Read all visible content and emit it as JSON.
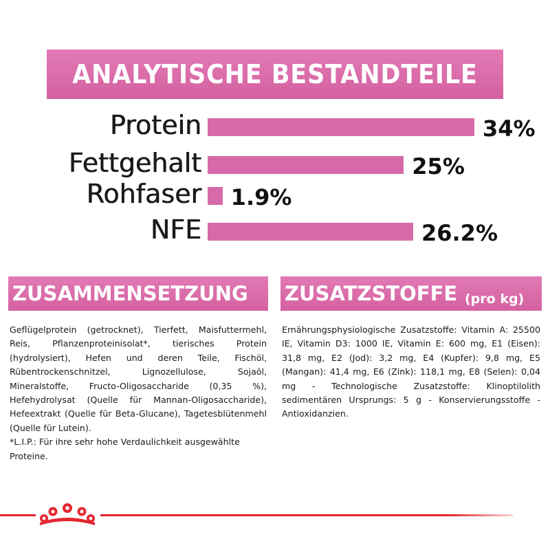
{
  "header": {
    "title": "ANALYTISCHE BESTANDTEILE"
  },
  "nutrients": [
    {
      "label": "Protein",
      "value": "34%",
      "percent": 34
    },
    {
      "label": "Fettgehalt",
      "value": "25%",
      "percent": 25
    },
    {
      "label": "Rohfaser",
      "value": "1.9%",
      "percent": 1.9
    },
    {
      "label": "NFE",
      "value": "26.2%",
      "percent": 26.2
    }
  ],
  "composition": {
    "title": "ZUSAMMENSETZUNG",
    "paragraphs": [
      "Geflügelprotein (getrocknet), Tierfett, Maisfuttermehl, Reis, Pflanzenproteinisolat*, tierisches Protein (hydrolysiert), Hefen und deren Teile, Fischöl, Rübentrockenschnitzel, Lignozellulose, Sojaöl, Mineralstoffe, Fructo-Oligosaccharide (0,35 %), Hefehydrolysat (Quelle für Mannan-Oligosaccharide), Hefeextrakt (Quelle für Beta-Glucane), Tagetesblütenmehl (Quelle für Lutein).",
      "*L.I.P.: Für ihre sehr hohe Verdaulichkeit ausgewählte Proteine."
    ]
  },
  "additives": {
    "title": "ZUSATZSTOFFE",
    "subtitle": "(pro kg)",
    "text": "Ernährungsphysiologische Zusatzstoffe: Vitamin A: 25500 IE, Vitamin D3: 1000 IE, Vitamin E: 600 mg, E1 (Eisen): 31,8 mg, E2 (Jod): 3,2 mg, E4 (Kupfer): 9,8 mg, E5 (Mangan): 41,4 mg, E6 (Zink): 118,1 mg, E8 (Selen): 0,04 mg - Technologische Zusatzstoffe: Klinoptilolith sedimentären Ursprungs: 5 g - Konservierungsstoffe - Antioxidanzien."
  },
  "colors": {
    "accent_pink": "#d66aa8",
    "brand_red": "#e3262f"
  },
  "logo": {
    "icon": "crown-icon"
  }
}
